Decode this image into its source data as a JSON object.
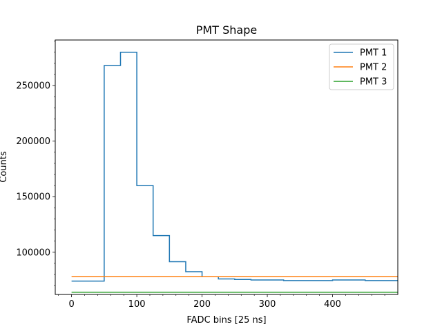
{
  "chart_data": {
    "type": "line",
    "title": "PMT Shape",
    "xlabel": "FADC bins [25 ns]",
    "ylabel": "Counts",
    "xlim": [
      -25,
      500
    ],
    "ylim": [
      62000,
      291000
    ],
    "xticks": [
      {
        "value": 0,
        "label": "0"
      },
      {
        "value": 100,
        "label": "100"
      },
      {
        "value": 200,
        "label": "200"
      },
      {
        "value": 300,
        "label": "300"
      },
      {
        "value": 400,
        "label": "400"
      }
    ],
    "yticks": [
      {
        "value": 100000,
        "label": "100000"
      },
      {
        "value": 150000,
        "label": "150000"
      },
      {
        "value": 200000,
        "label": "200000"
      },
      {
        "value": 250000,
        "label": "250000"
      }
    ],
    "x": [
      0,
      25,
      50,
      75,
      100,
      125,
      150,
      175,
      200,
      225,
      250,
      275,
      300,
      325,
      350,
      375,
      400,
      425,
      450,
      475
    ],
    "series": [
      {
        "name": "PMT 1",
        "color": "#1f77b4",
        "values": [
          74000,
          74000,
          268000,
          280000,
          160000,
          115000,
          91500,
          82500,
          78000,
          76000,
          75500,
          75000,
          75000,
          74500,
          74500,
          74500,
          75000,
          75000,
          74500,
          74500
        ]
      },
      {
        "name": "PMT 2",
        "color": "#ff7f0e",
        "values": [
          78000,
          78000,
          78000,
          78000,
          78000,
          78000,
          78000,
          78000,
          78000,
          78000,
          78000,
          78000,
          78000,
          78000,
          78000,
          78000,
          78000,
          78000,
          78000,
          78000
        ]
      },
      {
        "name": "PMT 3",
        "color": "#2ca02c",
        "values": [
          64000,
          64000,
          64000,
          64000,
          64000,
          64000,
          64000,
          64000,
          64000,
          64000,
          64000,
          64000,
          64000,
          64000,
          64000,
          64000,
          64000,
          64000,
          64000,
          64000
        ]
      }
    ],
    "legend": "top-right",
    "grid": false
  }
}
